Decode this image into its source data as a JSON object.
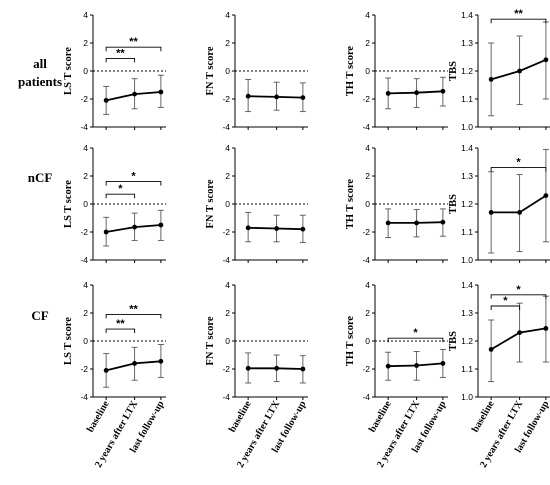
{
  "row_labels": [
    "all\npatients",
    "nCF",
    "CF"
  ],
  "x_categories": [
    "baseline",
    "2 years after LTX",
    "last follow-up"
  ],
  "chart_data": [
    {
      "type": "line",
      "row": 0,
      "col": 0,
      "ylabel": "LS T score",
      "ylim": [
        -4,
        4
      ],
      "yticks": [
        -4,
        -2,
        0,
        2,
        4
      ],
      "refline": 0,
      "values": [
        -2.1,
        -1.65,
        -1.5
      ],
      "err_low": [
        -3.1,
        -2.7,
        -2.6
      ],
      "err_high": [
        -1.1,
        -0.55,
        -0.3
      ],
      "brackets": [
        {
          "from": 0,
          "to": 1,
          "label": "**",
          "y": 0.9
        },
        {
          "from": 0,
          "to": 2,
          "label": "**",
          "y": 1.7
        }
      ]
    },
    {
      "type": "line",
      "row": 0,
      "col": 1,
      "ylabel": "FN T score",
      "ylim": [
        -4,
        4
      ],
      "yticks": [
        -4,
        -2,
        0,
        2,
        4
      ],
      "refline": 0,
      "values": [
        -1.8,
        -1.85,
        -1.9
      ],
      "err_low": [
        -2.9,
        -2.8,
        -2.9
      ],
      "err_high": [
        -0.6,
        -0.8,
        -0.85
      ],
      "brackets": []
    },
    {
      "type": "line",
      "row": 0,
      "col": 2,
      "ylabel": "TH T score",
      "ylim": [
        -4,
        4
      ],
      "yticks": [
        -4,
        -2,
        0,
        2,
        4
      ],
      "refline": 0,
      "values": [
        -1.6,
        -1.55,
        -1.45
      ],
      "err_low": [
        -2.7,
        -2.6,
        -2.5
      ],
      "err_high": [
        -0.5,
        -0.55,
        -0.45
      ],
      "brackets": []
    },
    {
      "type": "line",
      "row": 0,
      "col": 3,
      "ylabel": "TBS",
      "ylim": [
        1.0,
        1.4
      ],
      "yticks": [
        1.0,
        1.1,
        1.2,
        1.3,
        1.4
      ],
      "values": [
        1.17,
        1.2,
        1.24
      ],
      "err_low": [
        1.04,
        1.08,
        1.1
      ],
      "err_high": [
        1.3,
        1.325,
        1.375
      ],
      "brackets": [
        {
          "from": 0,
          "to": 2,
          "label": "**",
          "y": 1.385
        }
      ]
    },
    {
      "type": "line",
      "row": 1,
      "col": 0,
      "ylabel": "LS T score",
      "ylim": [
        -4,
        4
      ],
      "yticks": [
        -4,
        -2,
        0,
        2,
        4
      ],
      "refline": 0,
      "values": [
        -2.0,
        -1.65,
        -1.5
      ],
      "err_low": [
        -3.0,
        -2.6,
        -2.6
      ],
      "err_high": [
        -0.95,
        -0.65,
        -0.45
      ],
      "brackets": [
        {
          "from": 0,
          "to": 1,
          "label": "*",
          "y": 0.7
        },
        {
          "from": 0,
          "to": 2,
          "label": "*",
          "y": 1.6
        }
      ]
    },
    {
      "type": "line",
      "row": 1,
      "col": 1,
      "ylabel": "FN T score",
      "ylim": [
        -4,
        4
      ],
      "yticks": [
        -4,
        -2,
        0,
        2,
        4
      ],
      "refline": 0,
      "values": [
        -1.7,
        -1.75,
        -1.8
      ],
      "err_low": [
        -2.7,
        -2.7,
        -2.75
      ],
      "err_high": [
        -0.6,
        -0.8,
        -0.8
      ],
      "brackets": []
    },
    {
      "type": "line",
      "row": 1,
      "col": 2,
      "ylabel": "TH T score",
      "ylim": [
        -4,
        4
      ],
      "yticks": [
        -4,
        -2,
        0,
        2,
        4
      ],
      "refline": 0,
      "values": [
        -1.35,
        -1.35,
        -1.3
      ],
      "err_low": [
        -2.4,
        -2.35,
        -2.3
      ],
      "err_high": [
        -0.35,
        -0.4,
        -0.35
      ],
      "brackets": []
    },
    {
      "type": "line",
      "row": 1,
      "col": 3,
      "ylabel": "TBS",
      "ylim": [
        1.0,
        1.4
      ],
      "yticks": [
        1.0,
        1.1,
        1.2,
        1.3,
        1.4
      ],
      "values": [
        1.17,
        1.17,
        1.23
      ],
      "err_low": [
        1.025,
        1.03,
        1.065
      ],
      "err_high": [
        1.315,
        1.305,
        1.395
      ],
      "brackets": [
        {
          "from": 0,
          "to": 2,
          "label": "*",
          "y": 1.33
        }
      ]
    },
    {
      "type": "line",
      "row": 2,
      "col": 0,
      "ylabel": "LS T score",
      "ylim": [
        -4,
        4
      ],
      "yticks": [
        -4,
        -2,
        0,
        2,
        4
      ],
      "refline": 0,
      "values": [
        -2.1,
        -1.6,
        -1.45
      ],
      "err_low": [
        -3.3,
        -2.8,
        -2.6
      ],
      "err_high": [
        -0.9,
        -0.45,
        -0.25
      ],
      "brackets": [
        {
          "from": 0,
          "to": 1,
          "label": "**",
          "y": 0.85
        },
        {
          "from": 0,
          "to": 2,
          "label": "**",
          "y": 1.9
        }
      ]
    },
    {
      "type": "line",
      "row": 2,
      "col": 1,
      "ylabel": "FN T score",
      "ylim": [
        -4,
        4
      ],
      "yticks": [
        -4,
        -2,
        0,
        2,
        4
      ],
      "refline": 0,
      "values": [
        -1.95,
        -1.95,
        -2.0
      ],
      "err_low": [
        -3.0,
        -2.9,
        -3.0
      ],
      "err_high": [
        -0.85,
        -1.0,
        -1.05
      ],
      "brackets": []
    },
    {
      "type": "line",
      "row": 2,
      "col": 2,
      "ylabel": "TH T score",
      "ylim": [
        -4,
        4
      ],
      "yticks": [
        -4,
        -2,
        0,
        2,
        4
      ],
      "refline": 0,
      "values": [
        -1.8,
        -1.75,
        -1.6
      ],
      "err_low": [
        -2.8,
        -2.8,
        -2.6
      ],
      "err_high": [
        -0.8,
        -0.75,
        -0.6
      ],
      "brackets": [
        {
          "from": 0,
          "to": 2,
          "label": "*",
          "y": 0.2
        }
      ]
    },
    {
      "type": "line",
      "row": 2,
      "col": 3,
      "ylabel": "TBS",
      "ylim": [
        1.0,
        1.4
      ],
      "yticks": [
        1.0,
        1.1,
        1.2,
        1.3,
        1.4
      ],
      "values": [
        1.17,
        1.23,
        1.245
      ],
      "err_low": [
        1.055,
        1.125,
        1.125
      ],
      "err_high": [
        1.275,
        1.335,
        1.36
      ],
      "brackets": [
        {
          "from": 0,
          "to": 1,
          "label": "*",
          "y": 1.325
        },
        {
          "from": 0,
          "to": 2,
          "label": "*",
          "y": 1.365
        }
      ]
    }
  ]
}
